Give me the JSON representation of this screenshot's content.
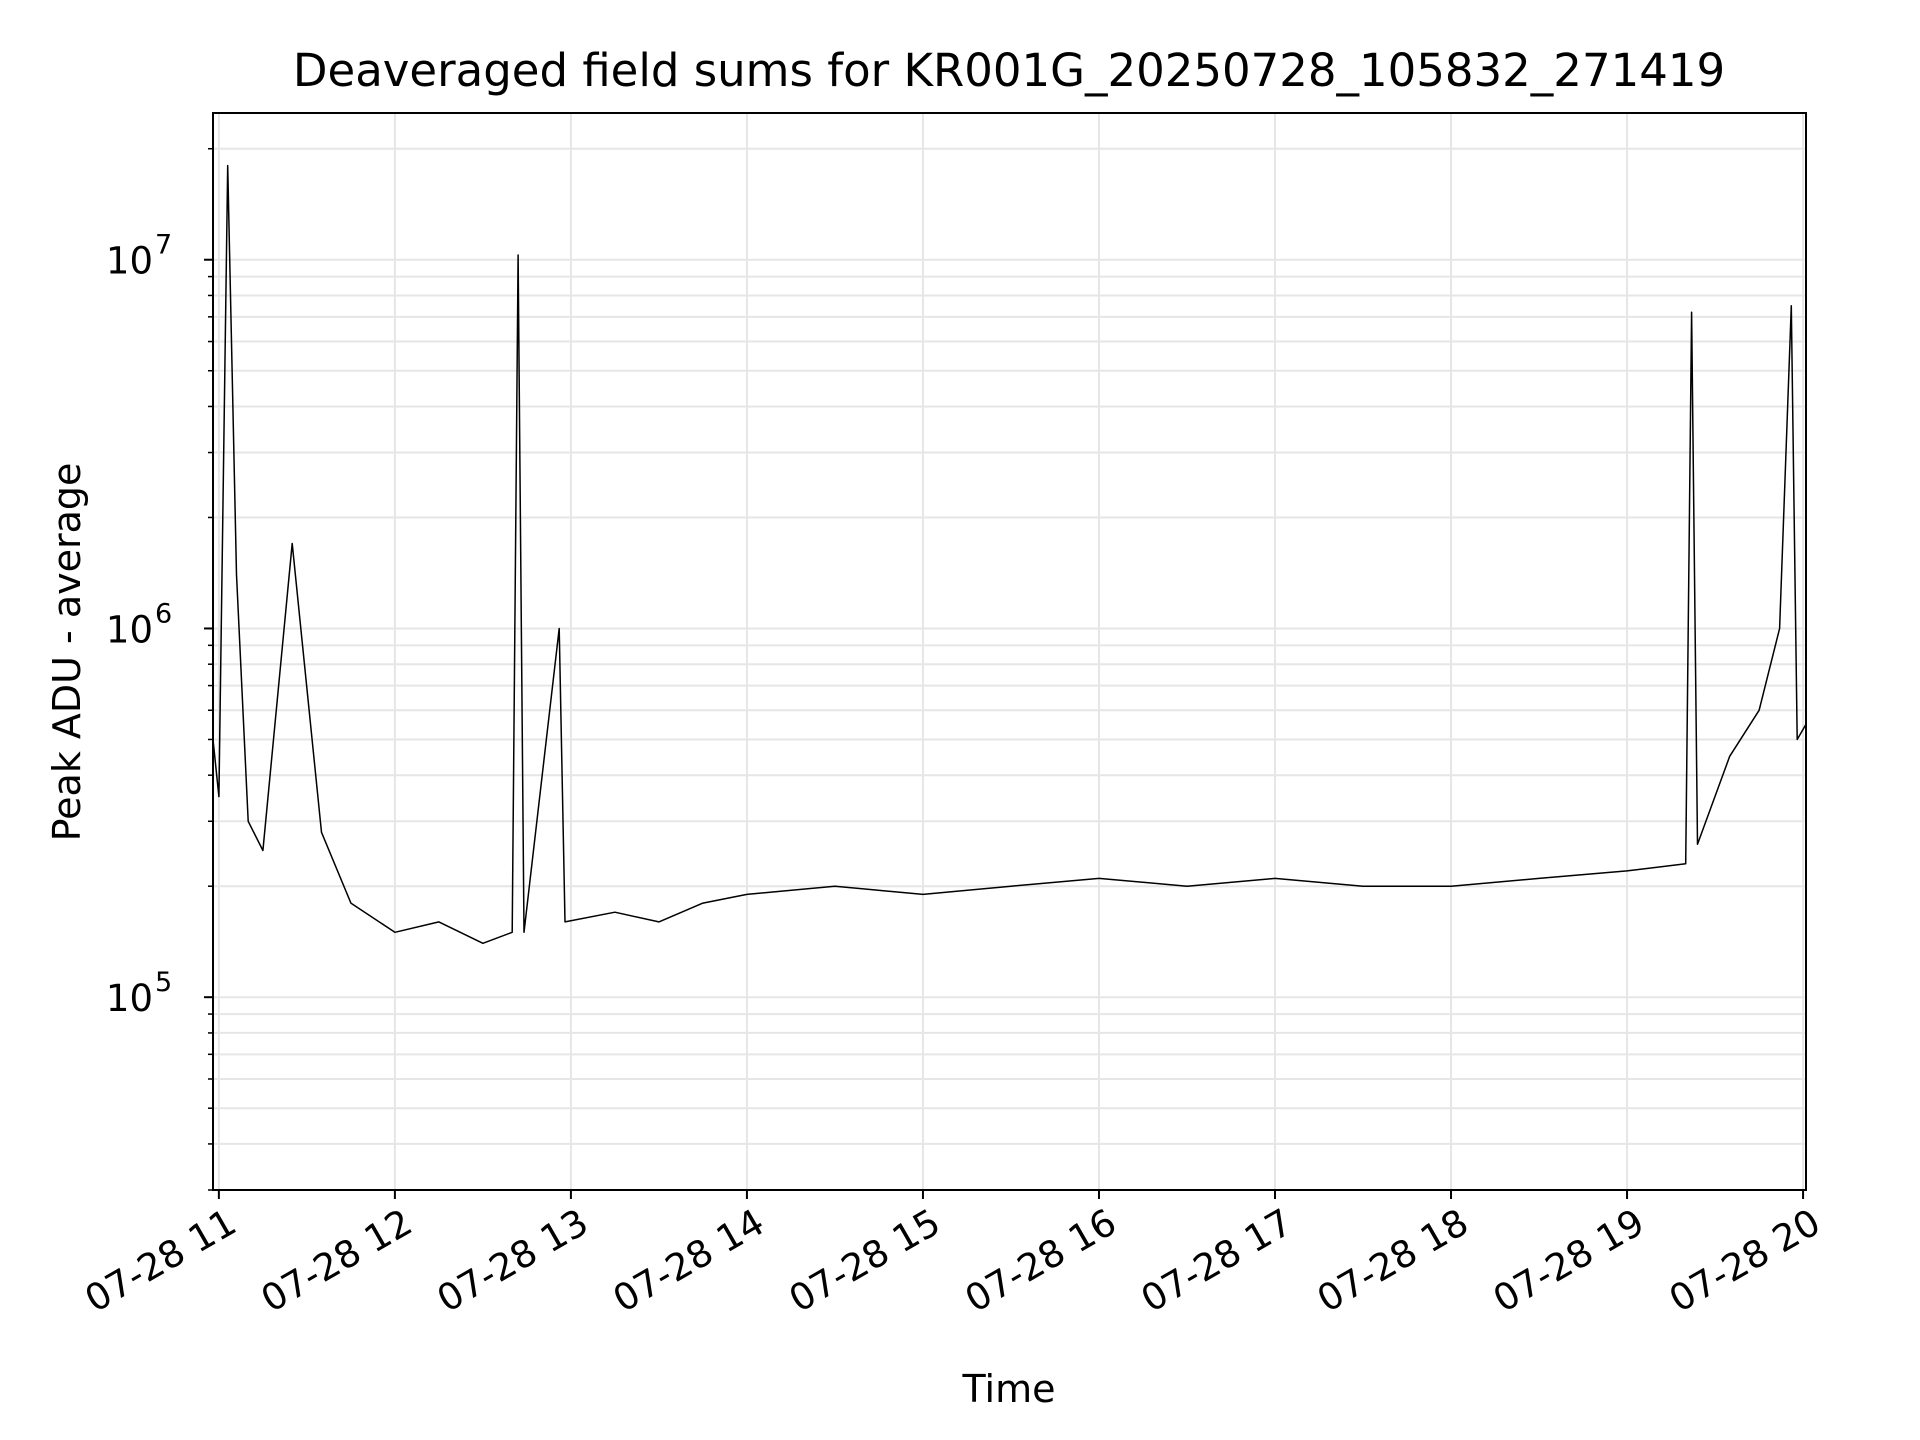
{
  "chart_data": {
    "type": "line",
    "title": "Deaveraged field sums for KR001G_20250728_105832_271419",
    "xlabel": "Time",
    "ylabel": "Peak ADU - average",
    "x_scale": "time",
    "y_scale": "log",
    "xlim": [
      "2025-07-28 10:58",
      "2025-07-28 20:01"
    ],
    "ylim": [
      30000,
      25000000
    ],
    "x_ticks": [
      "07-28 11",
      "07-28 12",
      "07-28 13",
      "07-28 14",
      "07-28 15",
      "07-28 16",
      "07-28 17",
      "07-28 18",
      "07-28 19",
      "07-28 20"
    ],
    "y_ticks": [
      {
        "value": 100000,
        "base": "10",
        "exp": "5"
      },
      {
        "value": 1000000,
        "base": "10",
        "exp": "6"
      },
      {
        "value": 10000000,
        "base": "10",
        "exp": "7"
      }
    ],
    "grid": true,
    "line_color": "#000000",
    "grid_color": "#e6e6e6",
    "series": [
      {
        "values": [
          {
            "x": "2025-07-28 10:58",
            "y": 500000
          },
          {
            "x": "2025-07-28 11:00",
            "y": 350000
          },
          {
            "x": "2025-07-28 11:03",
            "y": 18000000
          },
          {
            "x": "2025-07-28 11:06",
            "y": 1400000
          },
          {
            "x": "2025-07-28 11:10",
            "y": 300000
          },
          {
            "x": "2025-07-28 11:15",
            "y": 250000
          },
          {
            "x": "2025-07-28 11:25",
            "y": 1700000
          },
          {
            "x": "2025-07-28 11:35",
            "y": 280000
          },
          {
            "x": "2025-07-28 11:45",
            "y": 180000
          },
          {
            "x": "2025-07-28 12:00",
            "y": 150000
          },
          {
            "x": "2025-07-28 12:15",
            "y": 160000
          },
          {
            "x": "2025-07-28 12:30",
            "y": 140000
          },
          {
            "x": "2025-07-28 12:40",
            "y": 150000
          },
          {
            "x": "2025-07-28 12:42",
            "y": 10300000
          },
          {
            "x": "2025-07-28 12:44",
            "y": 150000
          },
          {
            "x": "2025-07-28 12:56",
            "y": 1000000
          },
          {
            "x": "2025-07-28 12:58",
            "y": 160000
          },
          {
            "x": "2025-07-28 13:15",
            "y": 170000
          },
          {
            "x": "2025-07-28 13:30",
            "y": 160000
          },
          {
            "x": "2025-07-28 13:45",
            "y": 180000
          },
          {
            "x": "2025-07-28 14:00",
            "y": 190000
          },
          {
            "x": "2025-07-28 14:30",
            "y": 200000
          },
          {
            "x": "2025-07-28 15:00",
            "y": 190000
          },
          {
            "x": "2025-07-28 15:30",
            "y": 200000
          },
          {
            "x": "2025-07-28 16:00",
            "y": 210000
          },
          {
            "x": "2025-07-28 16:30",
            "y": 200000
          },
          {
            "x": "2025-07-28 17:00",
            "y": 210000
          },
          {
            "x": "2025-07-28 17:30",
            "y": 200000
          },
          {
            "x": "2025-07-28 18:00",
            "y": 200000
          },
          {
            "x": "2025-07-28 18:30",
            "y": 210000
          },
          {
            "x": "2025-07-28 19:00",
            "y": 220000
          },
          {
            "x": "2025-07-28 19:20",
            "y": 230000
          },
          {
            "x": "2025-07-28 19:22",
            "y": 7200000
          },
          {
            "x": "2025-07-28 19:24",
            "y": 260000
          },
          {
            "x": "2025-07-28 19:35",
            "y": 450000
          },
          {
            "x": "2025-07-28 19:45",
            "y": 600000
          },
          {
            "x": "2025-07-28 19:52",
            "y": 1000000
          },
          {
            "x": "2025-07-28 19:56",
            "y": 7500000
          },
          {
            "x": "2025-07-28 19:58",
            "y": 500000
          },
          {
            "x": "2025-07-28 20:01",
            "y": 550000
          }
        ]
      }
    ]
  }
}
